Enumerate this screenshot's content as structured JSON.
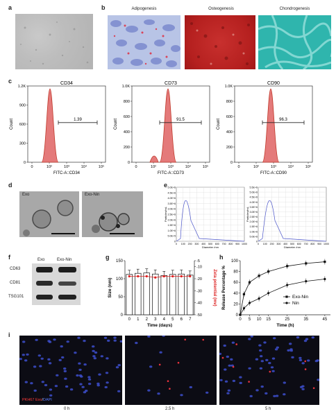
{
  "panel_labels": [
    "a",
    "b",
    "c",
    "d",
    "e",
    "f",
    "g",
    "h",
    "i"
  ],
  "panel_b": {
    "titles": [
      "Adipogenesis",
      "Osteogenesis",
      "Chondrogenesis"
    ]
  },
  "panel_c": {
    "xaxis_ticks": [
      "0",
      "10²",
      "10³",
      "10⁴",
      "10⁵"
    ],
    "ylabel": "Count",
    "plots": [
      {
        "title": "CD34",
        "xlabel": "FITC-A::CD34",
        "yticks": [
          "0",
          "300",
          "600",
          "900",
          "1.2K"
        ],
        "gate": "1.39"
      },
      {
        "title": "CD73",
        "xlabel": "FITC-A::CD73",
        "yticks": [
          "0",
          "200",
          "400",
          "600",
          "800",
          "1.0K"
        ],
        "gate": "91.5"
      },
      {
        "title": "CD90",
        "xlabel": "FITC-A::CD90",
        "yticks": [
          "0",
          "200",
          "400",
          "600",
          "800",
          "1.0K"
        ],
        "gate": "96.3"
      }
    ]
  },
  "panel_d": {
    "labels": [
      "Exo",
      "Exo-Nin"
    ]
  },
  "panel_e": {
    "ylabel": "Particles/mL",
    "xlabel": "Diameter /nm",
    "yticks": [
      "0",
      "5.0E+5",
      "1.0E+6",
      "1.5E+6",
      "2.0E+6",
      "2.5E+6",
      "3.0E+6",
      "3.5E+6",
      "4.0E+6",
      "4.5E+6",
      "5.0E+6"
    ],
    "xticks": [
      "0",
      "100",
      "200",
      "300",
      "400",
      "500",
      "600",
      "700",
      "800",
      "900",
      "1000"
    ],
    "yticks2": [
      "0",
      "5.0E+6",
      "1.0E+6",
      "1.5E+6",
      "2.0E+6",
      "2.5E+6",
      "3.0E+6",
      "3.5E+6",
      "4.0E+6",
      "4.5E+6",
      "5.0E+6",
      "5.5E+6"
    ]
  },
  "panel_f": {
    "cols": [
      "Exo",
      "Exo-Nin"
    ],
    "rows": [
      "CD63",
      "CD81",
      "TSG101"
    ]
  },
  "chart_data": [
    {
      "type": "bar",
      "title": "",
      "xlabel": "Time (days)",
      "ylabel": "Size (nm)",
      "y2label": "Zeta potential (mv)",
      "categories": [
        "0",
        "1",
        "2",
        "3",
        "4",
        "5",
        "6",
        "7"
      ],
      "ylim": [
        0,
        150
      ],
      "yticks": [
        "0",
        "50",
        "100",
        "150"
      ],
      "y2lim": [
        -50,
        -5
      ],
      "y2ticks": [
        "-5",
        "-10",
        "-20",
        "-30",
        "-40",
        "-50"
      ],
      "series": [
        {
          "values": [
            112,
            115,
            116,
            113,
            109,
            112,
            113,
            110
          ]
        },
        {
          "values": [
            -18,
            -18,
            -18,
            -19,
            -18,
            -18,
            -18,
            -18
          ]
        }
      ]
    },
    {
      "type": "line",
      "title": "",
      "xlabel": "Time (h)",
      "ylabel": "Release Percentage %",
      "x": [
        0,
        2,
        5,
        10,
        15,
        25,
        35,
        45
      ],
      "xticks": [
        "0",
        "5",
        "10",
        "15",
        "25",
        "35",
        "45"
      ],
      "ylim": [
        0,
        100
      ],
      "yticks": [
        "0",
        "20",
        "40",
        "60",
        "80",
        "100"
      ],
      "series": [
        {
          "name": "Exo-Nin",
          "values": [
            0,
            38,
            60,
            72,
            80,
            90,
            95,
            98
          ]
        },
        {
          "name": "Nin",
          "values": [
            0,
            12,
            22,
            30,
            40,
            55,
            62,
            66
          ]
        }
      ]
    }
  ],
  "panel_i": {
    "legend_a": "PKH67 Exo",
    "legend_sep": "/",
    "legend_b": "DAPI",
    "times": [
      "0 h",
      "2.5 h",
      "5 h"
    ]
  }
}
